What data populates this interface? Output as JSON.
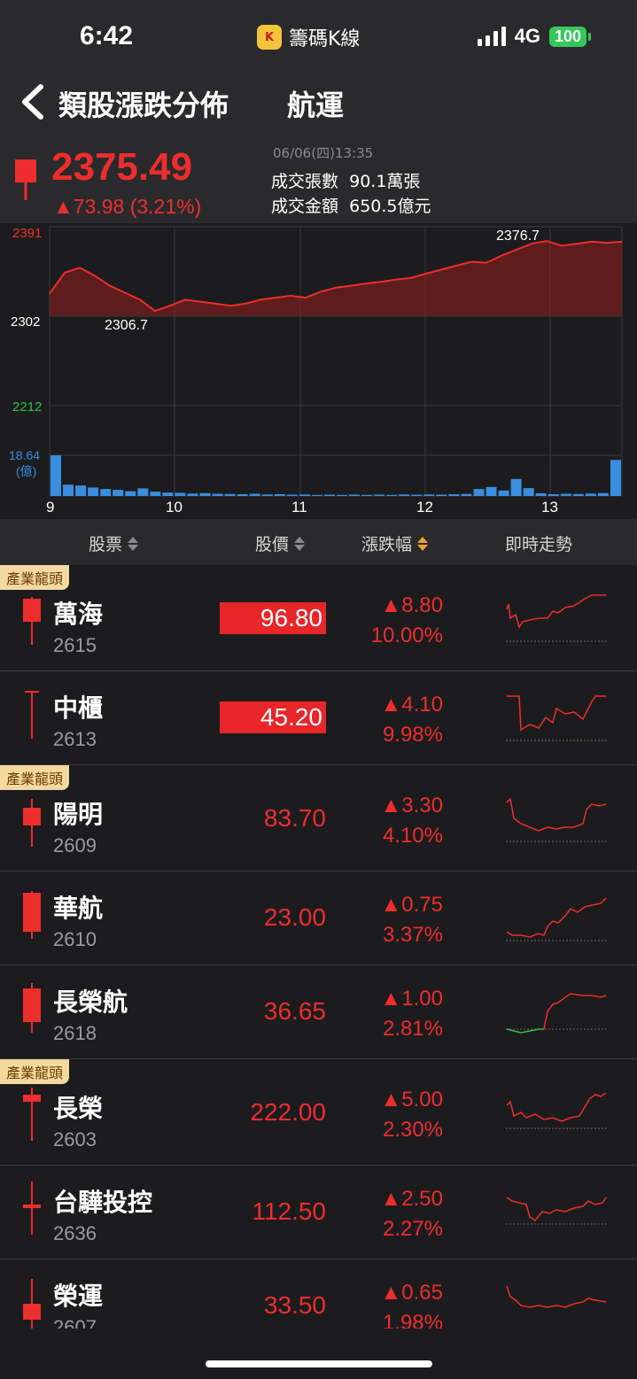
{
  "status": {
    "time": "6:42",
    "app_name": "籌碼K線",
    "network": "4G",
    "battery": "100"
  },
  "header": {
    "title": "類股漲跌分佈",
    "sector": "航運"
  },
  "quote": {
    "price": "2375.49",
    "change": "▲73.98 (3.21%)",
    "datetime": "06/06(四)13:35",
    "volume_label": "成交張數",
    "volume_value": "90.1萬張",
    "amount_label": "成交金額",
    "amount_value": "650.5億元"
  },
  "chart": {
    "y_labels": [
      "2391",
      "2302",
      "2212"
    ],
    "volume_label": "18.64",
    "volume_unit": "(億)",
    "x_labels": [
      "9",
      "10",
      "11",
      "12",
      "13"
    ],
    "high_label": "2376.7",
    "low_label": "2306.7",
    "up_color": "#ee2d2d",
    "down_color": "#2fbf4a"
  },
  "chart_data": {
    "type": "line",
    "title": "",
    "x_ticks": [
      "9",
      "10",
      "11",
      "12",
      "13"
    ],
    "ylim": [
      2212,
      2391
    ],
    "y_ticks": [
      2391,
      2302,
      2212
    ],
    "reference": 2302,
    "high": 2376.7,
    "low": 2306.7,
    "series": [
      {
        "values": [
          2324,
          2345,
          2350,
          2342,
          2332,
          2325,
          2318,
          2306.7,
          2312,
          2318,
          2316,
          2314,
          2312,
          2314,
          2318,
          2320,
          2322,
          2320,
          2326,
          2330,
          2332,
          2334,
          2336,
          2338,
          2340,
          2344,
          2348,
          2352,
          2356,
          2355,
          2362,
          2368,
          2374,
          2376.7,
          2372,
          2374,
          2376,
          2375,
          2376
        ]
      }
    ],
    "volume_max": 18.64,
    "volume": [
      18.6,
      5.2,
      4.8,
      3.9,
      3.2,
      2.8,
      2.2,
      3.5,
      2.0,
      1.6,
      1.4,
      1.1,
      1.3,
      1.0,
      0.9,
      0.8,
      1.0,
      0.7,
      0.8,
      0.6,
      0.7,
      0.5,
      0.6,
      0.5,
      0.6,
      0.5,
      0.6,
      0.5,
      0.7,
      0.6,
      0.7,
      0.6,
      0.8,
      0.9,
      3.2,
      4.1,
      2.5,
      7.8,
      3.6,
      1.2,
      0.8,
      1.0,
      0.9,
      1.1,
      1.3,
      16.5
    ]
  },
  "columns": {
    "stock": "股票",
    "price": "股價",
    "change": "漲跌幅",
    "trend": "即時走勢"
  },
  "rows": [
    {
      "tag": "產業龍頭",
      "name": "萬海",
      "code": "2615",
      "price": "96.80",
      "highlight": true,
      "change": "▲8.80",
      "pct": "10.00%"
    },
    {
      "tag": "",
      "name": "中櫃",
      "code": "2613",
      "price": "45.20",
      "highlight": true,
      "change": "▲4.10",
      "pct": "9.98%"
    },
    {
      "tag": "產業龍頭",
      "name": "陽明",
      "code": "2609",
      "price": "83.70",
      "highlight": false,
      "change": "▲3.30",
      "pct": "4.10%"
    },
    {
      "tag": "",
      "name": "華航",
      "code": "2610",
      "price": "23.00",
      "highlight": false,
      "change": "▲0.75",
      "pct": "3.37%"
    },
    {
      "tag": "",
      "name": "長榮航",
      "code": "2618",
      "price": "36.65",
      "highlight": false,
      "change": "▲1.00",
      "pct": "2.81%"
    },
    {
      "tag": "產業龍頭",
      "name": "長榮",
      "code": "2603",
      "price": "222.00",
      "highlight": false,
      "change": "▲5.00",
      "pct": "2.30%"
    },
    {
      "tag": "",
      "name": "台驊投控",
      "code": "2636",
      "price": "112.50",
      "highlight": false,
      "change": "▲2.50",
      "pct": "2.27%"
    },
    {
      "tag": "",
      "name": "榮運",
      "code": "2607",
      "price": "33.50",
      "highlight": false,
      "change": "▲0.65",
      "pct": "1.98%"
    }
  ]
}
